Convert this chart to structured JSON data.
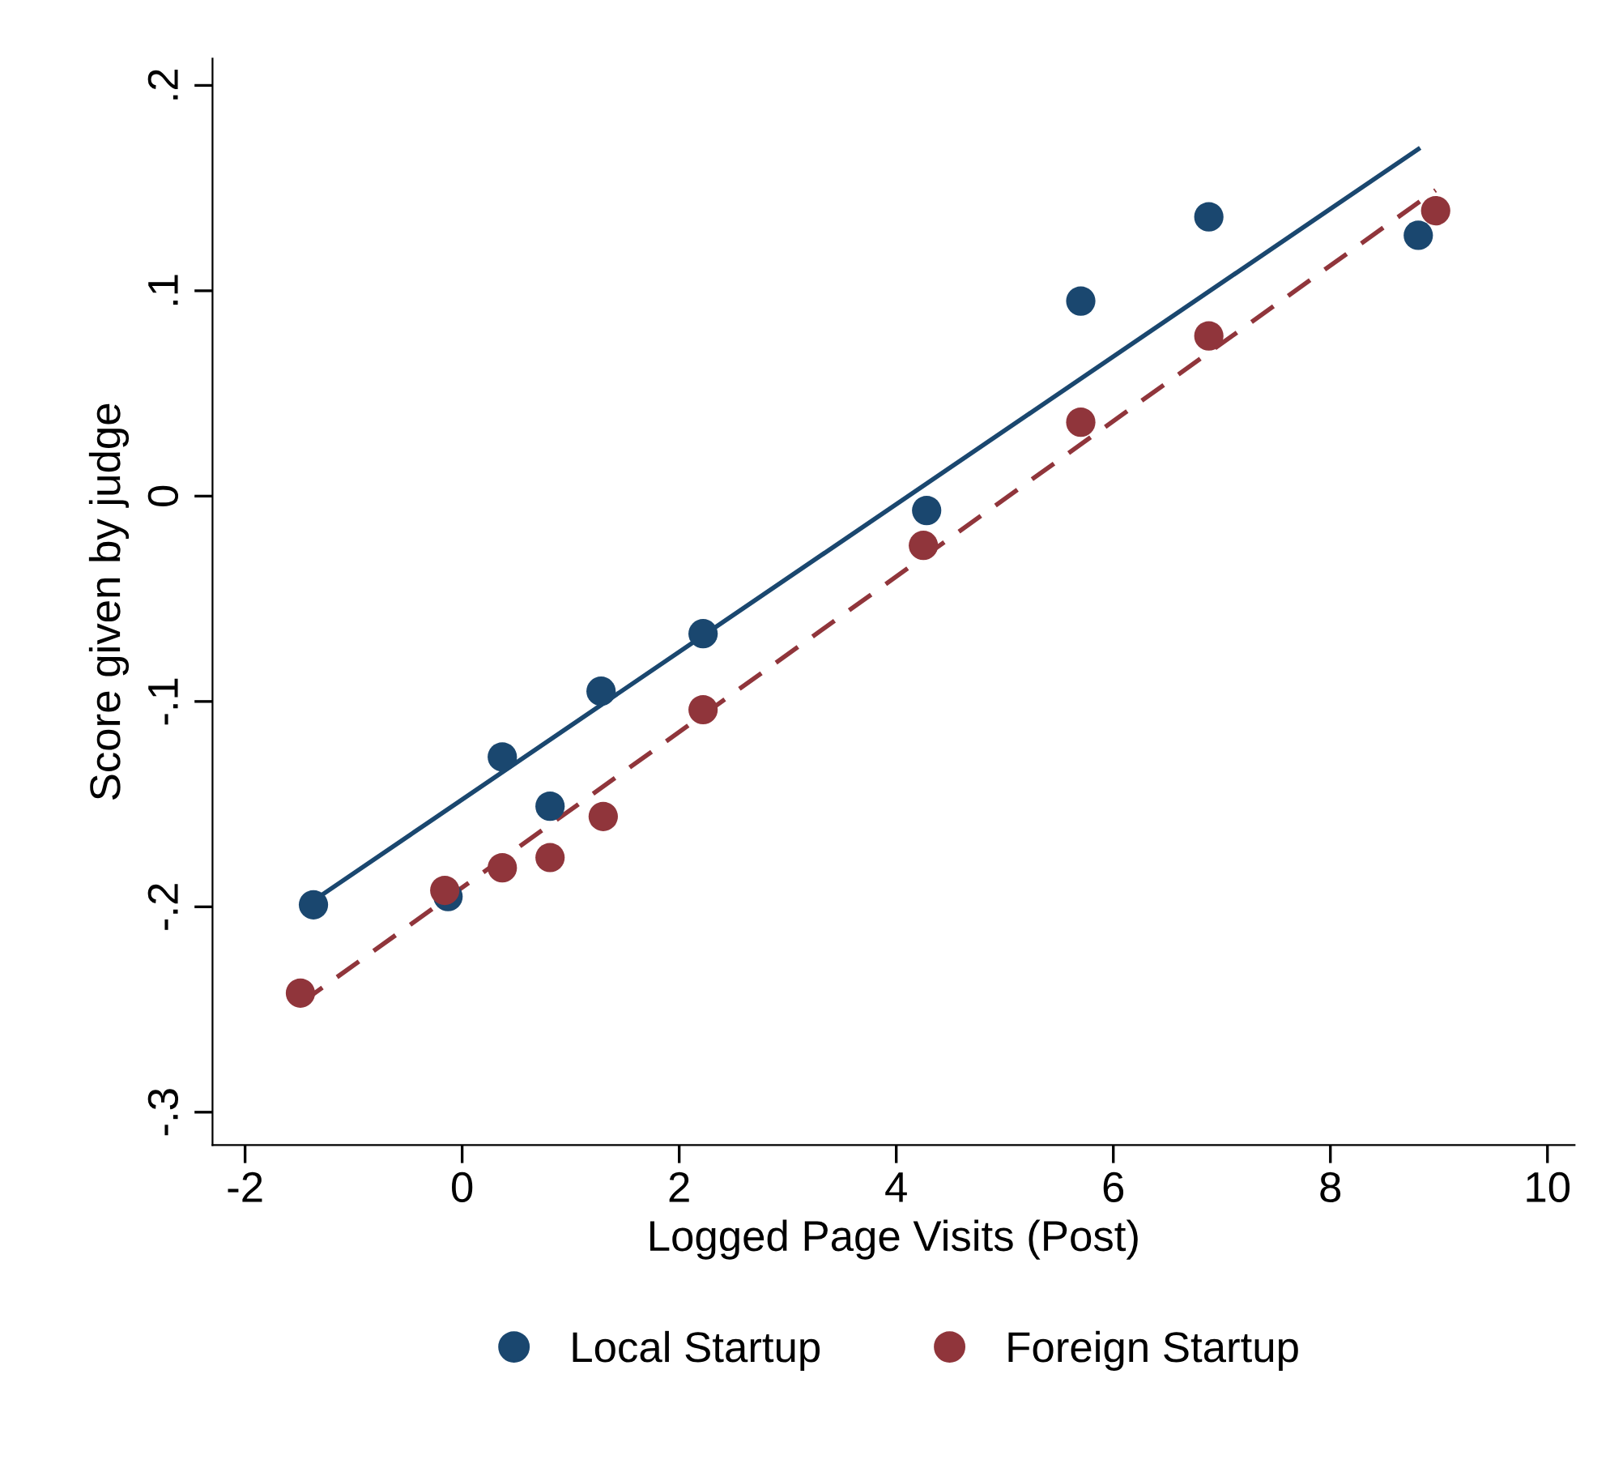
{
  "chart_data": {
    "type": "scatter",
    "xlabel": "Logged Page Visits (Post)",
    "ylabel": "Score given by judge",
    "xlim": [
      -2.3,
      10.25
    ],
    "xticks": [
      -2,
      0,
      2,
      4,
      6,
      8,
      10
    ],
    "ylim": [
      -0.316,
      0.213
    ],
    "yticks": [
      {
        "value": -0.3,
        "label": "-.3"
      },
      {
        "value": -0.2,
        "label": "-.2"
      },
      {
        "value": -0.1,
        "label": "-.1"
      },
      {
        "value": 0,
        "label": "0"
      },
      {
        "value": 0.1,
        "label": ".1"
      },
      {
        "value": 0.2,
        "label": ".2"
      }
    ],
    "grid": false,
    "legend": "bottom",
    "series": [
      {
        "name": "Local Startup",
        "marker": "circle",
        "color": "#1a476f",
        "x": [
          -1.37,
          -0.13,
          0.37,
          0.81,
          1.28,
          2.22,
          4.28,
          5.7,
          6.88,
          8.81
        ],
        "values": [
          -0.199,
          -0.195,
          -0.127,
          -0.151,
          -0.095,
          -0.067,
          -0.007,
          0.095,
          0.136,
          0.127
        ]
      },
      {
        "name": "Foreign Startup",
        "marker": "circle",
        "color": "#90353b",
        "x": [
          -1.49,
          -0.16,
          0.37,
          0.81,
          1.3,
          2.22,
          4.25,
          5.7,
          6.88,
          8.97
        ],
        "values": [
          -0.242,
          -0.192,
          -0.181,
          -0.176,
          -0.156,
          -0.104,
          -0.024,
          0.036,
          0.078,
          0.139
        ]
      },
      {
        "type": "line",
        "marker": "none",
        "color": "#1a476f",
        "line_style": "solid",
        "x": [
          -1.37,
          8.81
        ],
        "values": [
          -0.197,
          0.169
        ]
      },
      {
        "type": "line",
        "marker": "none",
        "color": "#90353b",
        "line_style": "dashed",
        "x": [
          -1.49,
          8.97
        ],
        "values": [
          -0.247,
          0.149
        ]
      }
    ]
  }
}
